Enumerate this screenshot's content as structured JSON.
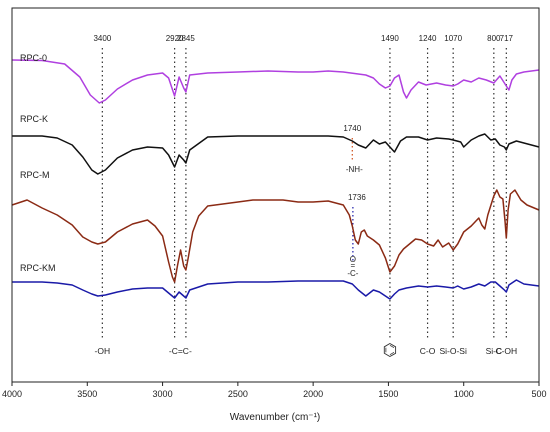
{
  "chart_data": {
    "type": "line",
    "title": "",
    "xlabel": "Wavenumber (cm⁻¹)",
    "ylabel": "",
    "xlim": [
      4000,
      500
    ],
    "x_reversed": true,
    "grid": false,
    "x_ticks": [
      4000,
      3500,
      3000,
      2500,
      2000,
      1500,
      1000,
      500
    ],
    "series": [
      {
        "name": "RPC-0",
        "color": "#b040e0",
        "points": [
          [
            4000,
            60
          ],
          [
            3800,
            60.5
          ],
          [
            3650,
            64
          ],
          [
            3550,
            77
          ],
          [
            3480,
            95
          ],
          [
            3420,
            103
          ],
          [
            3380,
            100
          ],
          [
            3300,
            89
          ],
          [
            3200,
            80
          ],
          [
            3100,
            75
          ],
          [
            3000,
            73
          ],
          [
            2960,
            78
          ],
          [
            2920,
            96
          ],
          [
            2890,
            77
          ],
          [
            2860,
            88
          ],
          [
            2845,
            92
          ],
          [
            2820,
            75
          ],
          [
            2700,
            73
          ],
          [
            2500,
            72
          ],
          [
            2300,
            71
          ],
          [
            2100,
            72
          ],
          [
            2000,
            72
          ],
          [
            1900,
            71
          ],
          [
            1800,
            72
          ],
          [
            1700,
            74
          ],
          [
            1650,
            75
          ],
          [
            1600,
            78
          ],
          [
            1560,
            84
          ],
          [
            1520,
            88
          ],
          [
            1490,
            86
          ],
          [
            1460,
            78
          ],
          [
            1430,
            75
          ],
          [
            1400,
            92
          ],
          [
            1380,
            98
          ],
          [
            1350,
            90
          ],
          [
            1300,
            82
          ],
          [
            1250,
            85
          ],
          [
            1180,
            83
          ],
          [
            1120,
            85
          ],
          [
            1070,
            86
          ],
          [
            1040,
            84
          ],
          [
            1000,
            80
          ],
          [
            950,
            82
          ],
          [
            900,
            78
          ],
          [
            850,
            80
          ],
          [
            800,
            83
          ],
          [
            760,
            76
          ],
          [
            730,
            83
          ],
          [
            717,
            86
          ],
          [
            700,
            90
          ],
          [
            680,
            80
          ],
          [
            650,
            74
          ],
          [
            600,
            72
          ],
          [
            500,
            70
          ]
        ]
      },
      {
        "name": "RPC-K",
        "color": "#111111",
        "points": [
          [
            4000,
            136
          ],
          [
            3800,
            136
          ],
          [
            3700,
            138
          ],
          [
            3600,
            145
          ],
          [
            3530,
            157
          ],
          [
            3470,
            170
          ],
          [
            3430,
            174
          ],
          [
            3380,
            170
          ],
          [
            3300,
            158
          ],
          [
            3200,
            150
          ],
          [
            3100,
            147
          ],
          [
            3000,
            148
          ],
          [
            2960,
            155
          ],
          [
            2920,
            167
          ],
          [
            2890,
            155
          ],
          [
            2860,
            160
          ],
          [
            2845,
            163
          ],
          [
            2820,
            150
          ],
          [
            2700,
            137
          ],
          [
            2500,
            136
          ],
          [
            2300,
            136
          ],
          [
            2100,
            136
          ],
          [
            2000,
            136
          ],
          [
            1900,
            136
          ],
          [
            1800,
            137
          ],
          [
            1740,
            141
          ],
          [
            1700,
            145
          ],
          [
            1650,
            148
          ],
          [
            1600,
            140
          ],
          [
            1560,
            144
          ],
          [
            1520,
            142
          ],
          [
            1490,
            147
          ],
          [
            1460,
            152
          ],
          [
            1420,
            141
          ],
          [
            1380,
            137
          ],
          [
            1300,
            137
          ],
          [
            1240,
            140
          ],
          [
            1180,
            138
          ],
          [
            1100,
            139
          ],
          [
            1070,
            140
          ],
          [
            1020,
            142
          ],
          [
            1000,
            147
          ],
          [
            950,
            140
          ],
          [
            900,
            136
          ],
          [
            860,
            134
          ],
          [
            820,
            140
          ],
          [
            790,
            139
          ],
          [
            760,
            145
          ],
          [
            730,
            147
          ],
          [
            717,
            150
          ],
          [
            700,
            144
          ],
          [
            650,
            141
          ],
          [
            600,
            143
          ],
          [
            500,
            147
          ]
        ]
      },
      {
        "name": "RPC-M",
        "color": "#8b2a14",
        "points": [
          [
            4000,
            205
          ],
          [
            3900,
            200
          ],
          [
            3800,
            208
          ],
          [
            3700,
            215
          ],
          [
            3600,
            225
          ],
          [
            3530,
            237
          ],
          [
            3470,
            242
          ],
          [
            3430,
            244
          ],
          [
            3380,
            242
          ],
          [
            3300,
            232
          ],
          [
            3200,
            224
          ],
          [
            3100,
            220
          ],
          [
            3050,
            226
          ],
          [
            3000,
            236
          ],
          [
            2960,
            262
          ],
          [
            2935,
            277
          ],
          [
            2920,
            282
          ],
          [
            2900,
            265
          ],
          [
            2880,
            250
          ],
          [
            2860,
            266
          ],
          [
            2845,
            270
          ],
          [
            2830,
            258
          ],
          [
            2800,
            232
          ],
          [
            2760,
            216
          ],
          [
            2700,
            206
          ],
          [
            2600,
            204
          ],
          [
            2500,
            202
          ],
          [
            2400,
            200
          ],
          [
            2300,
            200
          ],
          [
            2200,
            200
          ],
          [
            2100,
            202
          ],
          [
            2000,
            202
          ],
          [
            1900,
            201
          ],
          [
            1800,
            205
          ],
          [
            1760,
            215
          ],
          [
            1740,
            226
          ],
          [
            1720,
            240
          ],
          [
            1700,
            244
          ],
          [
            1680,
            232
          ],
          [
            1660,
            230
          ],
          [
            1640,
            236
          ],
          [
            1600,
            240
          ],
          [
            1560,
            245
          ],
          [
            1520,
            258
          ],
          [
            1490,
            272
          ],
          [
            1460,
            266
          ],
          [
            1430,
            255
          ],
          [
            1400,
            249
          ],
          [
            1360,
            244
          ],
          [
            1320,
            239
          ],
          [
            1280,
            240
          ],
          [
            1240,
            244
          ],
          [
            1200,
            246
          ],
          [
            1170,
            240
          ],
          [
            1140,
            247
          ],
          [
            1100,
            243
          ],
          [
            1070,
            250
          ],
          [
            1040,
            244
          ],
          [
            1000,
            232
          ],
          [
            950,
            226
          ],
          [
            900,
            218
          ],
          [
            880,
            225
          ],
          [
            860,
            229
          ],
          [
            840,
            215
          ],
          [
            800,
            196
          ],
          [
            780,
            190
          ],
          [
            760,
            197
          ],
          [
            740,
            199
          ],
          [
            725,
            222
          ],
          [
            717,
            238
          ],
          [
            705,
            210
          ],
          [
            690,
            194
          ],
          [
            660,
            190
          ],
          [
            620,
            200
          ],
          [
            580,
            205
          ],
          [
            500,
            210
          ]
        ]
      },
      {
        "name": "RPC-KM",
        "color": "#1a1aa8",
        "points": [
          [
            4000,
            282
          ],
          [
            3800,
            282
          ],
          [
            3700,
            283
          ],
          [
            3600,
            285
          ],
          [
            3530,
            290
          ],
          [
            3470,
            294
          ],
          [
            3430,
            296
          ],
          [
            3380,
            295
          ],
          [
            3300,
            292
          ],
          [
            3200,
            289
          ],
          [
            3100,
            288
          ],
          [
            3000,
            288
          ],
          [
            2960,
            293
          ],
          [
            2920,
            298
          ],
          [
            2890,
            292
          ],
          [
            2860,
            296
          ],
          [
            2845,
            298
          ],
          [
            2820,
            290
          ],
          [
            2700,
            284
          ],
          [
            2500,
            282
          ],
          [
            2300,
            282
          ],
          [
            2100,
            281
          ],
          [
            2000,
            281
          ],
          [
            1900,
            281
          ],
          [
            1800,
            281
          ],
          [
            1740,
            284
          ],
          [
            1700,
            290
          ],
          [
            1650,
            296
          ],
          [
            1600,
            290
          ],
          [
            1560,
            292
          ],
          [
            1520,
            296
          ],
          [
            1490,
            299
          ],
          [
            1460,
            294
          ],
          [
            1430,
            290
          ],
          [
            1380,
            288
          ],
          [
            1300,
            286
          ],
          [
            1240,
            287
          ],
          [
            1180,
            286
          ],
          [
            1120,
            287
          ],
          [
            1070,
            288
          ],
          [
            1040,
            286
          ],
          [
            1000,
            289
          ],
          [
            950,
            287
          ],
          [
            900,
            284
          ],
          [
            860,
            286
          ],
          [
            820,
            282
          ],
          [
            790,
            282
          ],
          [
            760,
            286
          ],
          [
            730,
            290
          ],
          [
            717,
            292
          ],
          [
            700,
            285
          ],
          [
            650,
            280
          ],
          [
            600,
            284
          ],
          [
            500,
            286
          ]
        ]
      }
    ],
    "series_label_text": [
      "RPC-0",
      "RPC-K",
      "RPC-M",
      "RPC-KM"
    ],
    "peak_lines": [
      {
        "x": 3400,
        "label": "3400"
      },
      {
        "x": 2920,
        "label": "2920"
      },
      {
        "x": 2845,
        "label": "2845"
      },
      {
        "x": 1490,
        "label": "1490"
      },
      {
        "x": 1240,
        "label": "1240"
      },
      {
        "x": 1070,
        "label": "1070"
      },
      {
        "x": 800,
        "label": "800"
      },
      {
        "x": 717,
        "label": "717"
      }
    ],
    "extra_peaks": [
      {
        "x": 1740,
        "label": "1740",
        "color": "#d0501a",
        "note": "-NH-"
      },
      {
        "x": 1736,
        "label": "1736",
        "color": "#1a1aa8",
        "note": "-C-",
        "note_top": "O",
        "note_eq": "="
      }
    ],
    "group_labels": [
      {
        "x": 3400,
        "text": "-OH"
      },
      {
        "x": 2882,
        "text": "-C=C-"
      },
      {
        "x": 1490,
        "text": "benzene-ring-icon"
      },
      {
        "x": 1240,
        "text": "C-O"
      },
      {
        "x": 1070,
        "text": "Si-O-Si"
      },
      {
        "x": 800,
        "text": "Si-C"
      },
      {
        "x": 717,
        "text": "C-OH"
      }
    ]
  }
}
